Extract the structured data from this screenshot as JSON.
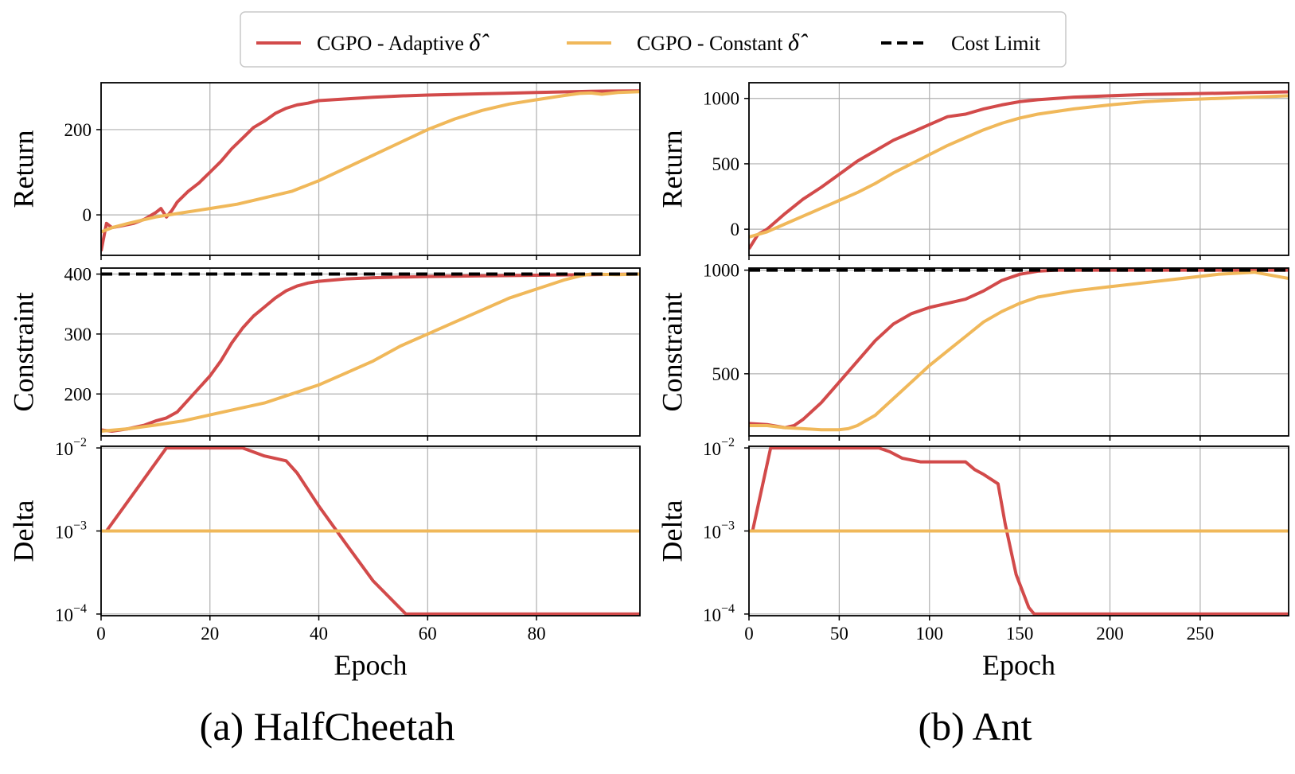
{
  "legend": {
    "items": [
      {
        "label": "CGPO - Adaptive",
        "symbol": "δ̂",
        "color": "#d24a4a",
        "style": "solid"
      },
      {
        "label": "CGPO - Constant",
        "symbol": "δ̂",
        "color": "#f0b85a",
        "style": "solid"
      },
      {
        "label": "Cost Limit",
        "symbol": "",
        "color": "#000000",
        "style": "dashed"
      }
    ]
  },
  "captions": [
    "(a) HalfCheetah",
    "(b) Ant"
  ],
  "chart_data": [
    {
      "type": "line",
      "panel": "HalfCheetah / Return",
      "xlabel": "",
      "ylabel": "Return",
      "xlim": [
        0,
        99
      ],
      "ylim": [
        -95,
        310
      ],
      "xticks": [
        0,
        20,
        40,
        60,
        80
      ],
      "yticks": [
        0,
        200
      ],
      "series": [
        {
          "name": "CGPO - Adaptive",
          "x": [
            0,
            1,
            2,
            4,
            6,
            8,
            10,
            11,
            12,
            13,
            14,
            16,
            18,
            20,
            22,
            24,
            26,
            28,
            30,
            32,
            34,
            36,
            38,
            40,
            45,
            50,
            55,
            60,
            70,
            80,
            90,
            99
          ],
          "y": [
            -85,
            -20,
            -30,
            -25,
            -20,
            -10,
            5,
            15,
            -5,
            10,
            30,
            55,
            75,
            100,
            125,
            155,
            180,
            205,
            220,
            238,
            250,
            258,
            262,
            268,
            272,
            276,
            279,
            281,
            284,
            287,
            290,
            291
          ]
        },
        {
          "name": "CGPO - Constant",
          "x": [
            0,
            2,
            5,
            10,
            15,
            20,
            25,
            30,
            35,
            40,
            45,
            50,
            55,
            60,
            65,
            70,
            75,
            80,
            85,
            88,
            90,
            92,
            95,
            99
          ],
          "y": [
            -40,
            -30,
            -20,
            -5,
            5,
            15,
            25,
            40,
            55,
            80,
            110,
            140,
            170,
            200,
            225,
            245,
            260,
            270,
            280,
            285,
            286,
            283,
            287,
            289
          ]
        }
      ]
    },
    {
      "type": "line",
      "panel": "HalfCheetah / Constraint",
      "xlabel": "",
      "ylabel": "Constraint",
      "xlim": [
        0,
        99
      ],
      "ylim": [
        130,
        410
      ],
      "xticks": [
        0,
        20,
        40,
        60,
        80
      ],
      "yticks": [
        200,
        300,
        400
      ],
      "cost_limit": 400,
      "series": [
        {
          "name": "CGPO - Adaptive",
          "x": [
            0,
            2,
            5,
            8,
            10,
            12,
            14,
            16,
            18,
            20,
            22,
            24,
            26,
            28,
            30,
            32,
            34,
            36,
            38,
            40,
            45,
            50,
            55,
            60,
            70,
            80,
            90,
            99
          ],
          "y": [
            140,
            138,
            142,
            148,
            155,
            160,
            170,
            190,
            210,
            230,
            255,
            285,
            310,
            330,
            345,
            360,
            372,
            380,
            385,
            388,
            392,
            394,
            395,
            396,
            397,
            398,
            399,
            400
          ]
        },
        {
          "name": "CGPO - Constant",
          "x": [
            0,
            5,
            10,
            15,
            20,
            25,
            30,
            35,
            40,
            45,
            50,
            55,
            60,
            65,
            70,
            75,
            80,
            85,
            88,
            90,
            95,
            99
          ],
          "y": [
            138,
            142,
            148,
            155,
            165,
            175,
            185,
            200,
            215,
            235,
            255,
            280,
            300,
            320,
            340,
            360,
            375,
            390,
            397,
            400,
            399,
            400
          ]
        }
      ]
    },
    {
      "type": "line",
      "panel": "HalfCheetah / Delta",
      "xlabel": "Epoch",
      "ylabel": "Delta",
      "xscale": "linear",
      "yscale": "log",
      "xlim": [
        0,
        99
      ],
      "ylim_log10": [
        -4.02,
        -1.98
      ],
      "xticks": [
        0,
        20,
        40,
        60,
        80
      ],
      "yticks_label": [
        "10",
        "10",
        "10"
      ],
      "yticks_exp": [
        "−4",
        "−3",
        "−2"
      ],
      "series": [
        {
          "name": "CGPO - Adaptive",
          "x": [
            0,
            1,
            12,
            26,
            30,
            34,
            36,
            40,
            45,
            50,
            56,
            58,
            99
          ],
          "y": [
            0.001,
            0.001,
            0.01,
            0.01,
            0.008,
            0.007,
            0.005,
            0.002,
            0.0007,
            0.00025,
            0.0001,
            0.0001,
            0.0001
          ]
        },
        {
          "name": "CGPO - Constant",
          "x": [
            0,
            99
          ],
          "y": [
            0.001,
            0.001
          ]
        }
      ]
    },
    {
      "type": "line",
      "panel": "Ant / Return",
      "xlabel": "",
      "ylabel": "Return",
      "xlim": [
        0,
        299
      ],
      "ylim": [
        -200,
        1120
      ],
      "xticks": [
        0,
        50,
        100,
        150,
        200,
        250
      ],
      "yticks": [
        0,
        500,
        1000
      ],
      "series": [
        {
          "name": "CGPO - Adaptive",
          "x": [
            0,
            5,
            10,
            20,
            30,
            40,
            50,
            60,
            70,
            80,
            90,
            100,
            110,
            120,
            130,
            140,
            150,
            160,
            170,
            180,
            200,
            220,
            240,
            260,
            280,
            299
          ],
          "y": [
            -150,
            -40,
            0,
            120,
            230,
            320,
            420,
            520,
            600,
            680,
            740,
            800,
            860,
            880,
            920,
            950,
            975,
            990,
            1000,
            1010,
            1020,
            1030,
            1035,
            1040,
            1045,
            1050
          ]
        },
        {
          "name": "CGPO - Constant",
          "x": [
            0,
            10,
            20,
            30,
            40,
            50,
            60,
            70,
            80,
            90,
            100,
            110,
            120,
            130,
            140,
            150,
            160,
            180,
            200,
            220,
            240,
            260,
            280,
            299
          ],
          "y": [
            -60,
            -20,
            40,
            100,
            160,
            220,
            280,
            350,
            430,
            500,
            570,
            640,
            700,
            760,
            810,
            850,
            880,
            920,
            950,
            975,
            990,
            1000,
            1010,
            1020
          ]
        }
      ]
    },
    {
      "type": "line",
      "panel": "Ant / Constraint",
      "xlabel": "",
      "ylabel": "Constraint",
      "xlim": [
        0,
        299
      ],
      "ylim": [
        200,
        1010
      ],
      "xticks": [
        0,
        50,
        100,
        150,
        200,
        250
      ],
      "yticks": [
        500,
        1000
      ],
      "cost_limit": 1000,
      "series": [
        {
          "name": "CGPO - Adaptive",
          "x": [
            0,
            10,
            20,
            25,
            30,
            40,
            50,
            60,
            70,
            80,
            90,
            100,
            110,
            120,
            130,
            140,
            150,
            160,
            170,
            180,
            200,
            220,
            240,
            260,
            280,
            299
          ],
          "y": [
            260,
            255,
            240,
            250,
            280,
            360,
            460,
            560,
            660,
            740,
            790,
            820,
            840,
            860,
            900,
            950,
            980,
            995,
            1000,
            1000,
            1000,
            1000,
            1000,
            1000,
            1000,
            1000
          ]
        },
        {
          "name": "CGPO - Constant",
          "x": [
            0,
            10,
            20,
            30,
            40,
            50,
            55,
            60,
            70,
            80,
            90,
            100,
            110,
            120,
            130,
            140,
            150,
            160,
            180,
            200,
            220,
            240,
            260,
            280,
            299
          ],
          "y": [
            250,
            250,
            240,
            235,
            230,
            230,
            235,
            250,
            300,
            380,
            460,
            540,
            610,
            680,
            750,
            800,
            840,
            870,
            900,
            920,
            940,
            960,
            980,
            990,
            960
          ]
        }
      ]
    },
    {
      "type": "line",
      "panel": "Ant / Delta",
      "xlabel": "Epoch",
      "ylabel": "Delta",
      "xscale": "linear",
      "yscale": "log",
      "xlim": [
        0,
        299
      ],
      "ylim_log10": [
        -4.02,
        -1.98
      ],
      "xticks": [
        0,
        50,
        100,
        150,
        200,
        250
      ],
      "yticks_label": [
        "10",
        "10",
        "10"
      ],
      "yticks_exp": [
        "−4",
        "−3",
        "−2"
      ],
      "series": [
        {
          "name": "CGPO - Adaptive",
          "x": [
            0,
            2,
            12,
            72,
            78,
            85,
            95,
            110,
            120,
            125,
            130,
            138,
            142,
            148,
            155,
            158,
            299
          ],
          "y": [
            0.001,
            0.001,
            0.01,
            0.01,
            0.009,
            0.0075,
            0.0068,
            0.0068,
            0.0068,
            0.0055,
            0.0048,
            0.0037,
            0.0012,
            0.0003,
            0.00012,
            0.0001,
            0.0001
          ]
        },
        {
          "name": "CGPO - Constant",
          "x": [
            0,
            299
          ],
          "y": [
            0.001,
            0.001
          ]
        }
      ]
    }
  ]
}
